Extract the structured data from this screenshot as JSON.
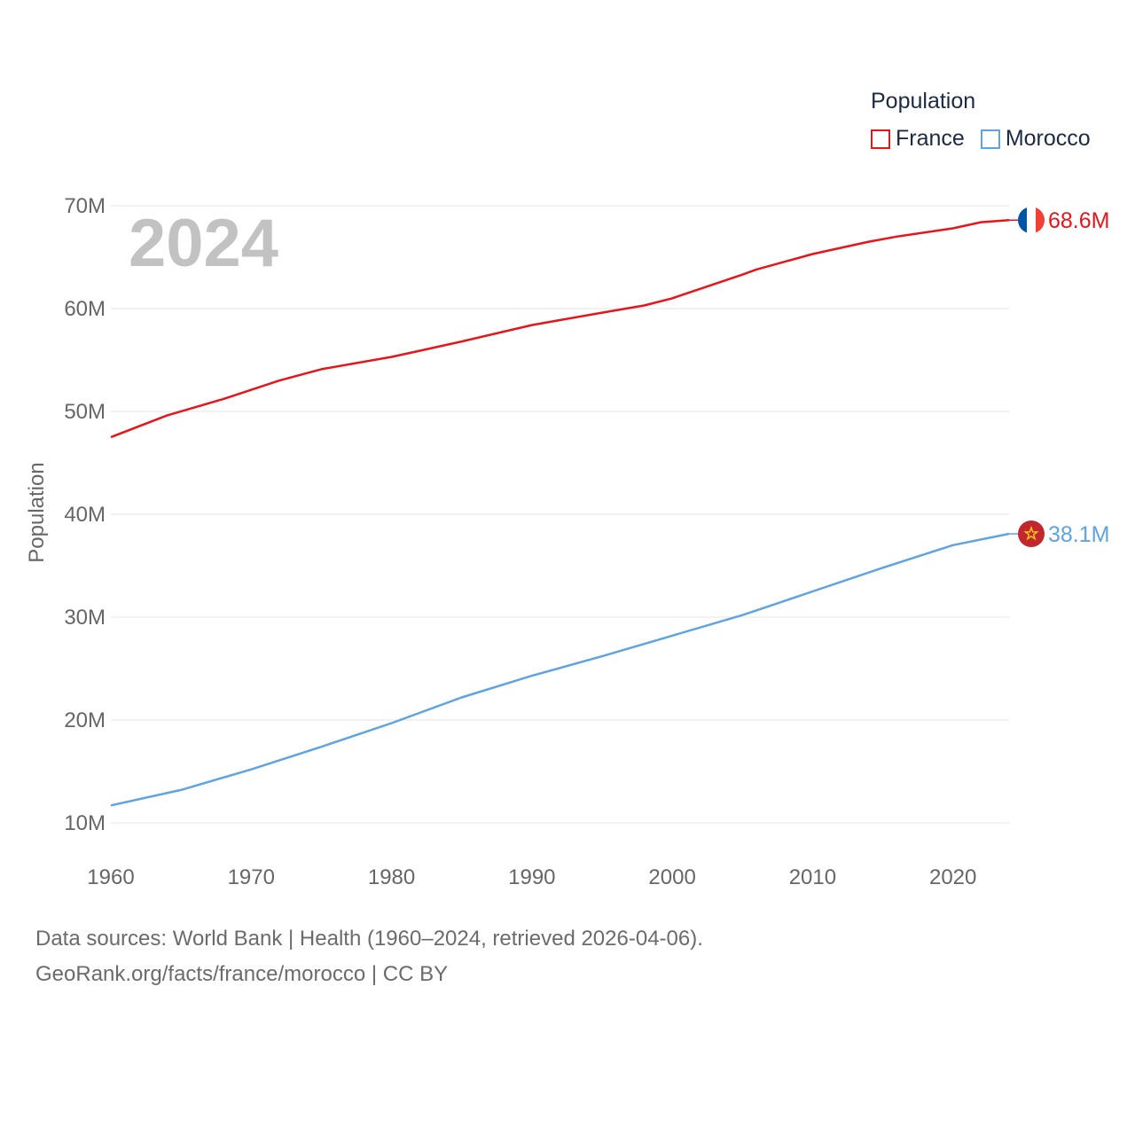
{
  "chart_data": {
    "type": "line",
    "title": "Population",
    "year_label": "2024",
    "ylabel": "Population",
    "xlabel": "",
    "xlim": [
      1960,
      2024
    ],
    "ylim": [
      10000000,
      70000000
    ],
    "x_ticks": [
      1960,
      1970,
      1980,
      1990,
      2000,
      2010,
      2020
    ],
    "y_ticks": [
      {
        "value": 10000000,
        "label": "10M"
      },
      {
        "value": 20000000,
        "label": "20M"
      },
      {
        "value": 30000000,
        "label": "30M"
      },
      {
        "value": 40000000,
        "label": "40M"
      },
      {
        "value": 50000000,
        "label": "50M"
      },
      {
        "value": 60000000,
        "label": "60M"
      },
      {
        "value": 70000000,
        "label": "70M"
      }
    ],
    "legend": {
      "title": "Population",
      "position": "top-right"
    },
    "series": [
      {
        "name": "France",
        "color": "#e8141a",
        "end_label": "68.6M",
        "flag": "france-flag",
        "points": [
          [
            1960,
            47500000
          ],
          [
            1964,
            49600000
          ],
          [
            1968,
            51200000
          ],
          [
            1972,
            53000000
          ],
          [
            1975,
            54100000
          ],
          [
            1980,
            55300000
          ],
          [
            1982,
            55900000
          ],
          [
            1985,
            56800000
          ],
          [
            1990,
            58400000
          ],
          [
            1995,
            59600000
          ],
          [
            1998,
            60300000
          ],
          [
            2000,
            61000000
          ],
          [
            2005,
            63300000
          ],
          [
            2006,
            63800000
          ],
          [
            2010,
            65300000
          ],
          [
            2014,
            66500000
          ],
          [
            2016,
            67000000
          ],
          [
            2020,
            67800000
          ],
          [
            2022,
            68400000
          ],
          [
            2024,
            68600000
          ]
        ]
      },
      {
        "name": "Morocco",
        "color": "#5ea3e3",
        "end_label": "38.1M",
        "flag": "morocco-flag",
        "points": [
          [
            1960,
            11700000
          ],
          [
            1965,
            13200000
          ],
          [
            1970,
            15200000
          ],
          [
            1975,
            17400000
          ],
          [
            1980,
            19700000
          ],
          [
            1985,
            22200000
          ],
          [
            1990,
            24300000
          ],
          [
            1995,
            26200000
          ],
          [
            2000,
            28200000
          ],
          [
            2005,
            30200000
          ],
          [
            2010,
            32500000
          ],
          [
            2015,
            34800000
          ],
          [
            2020,
            37000000
          ],
          [
            2024,
            38100000
          ]
        ]
      }
    ]
  },
  "footer": {
    "line1": "Data sources: World Bank | Health (1960–2024, retrieved 2026-04-06).",
    "line2": "GeoRank.org/facts/france/morocco | CC BY"
  }
}
